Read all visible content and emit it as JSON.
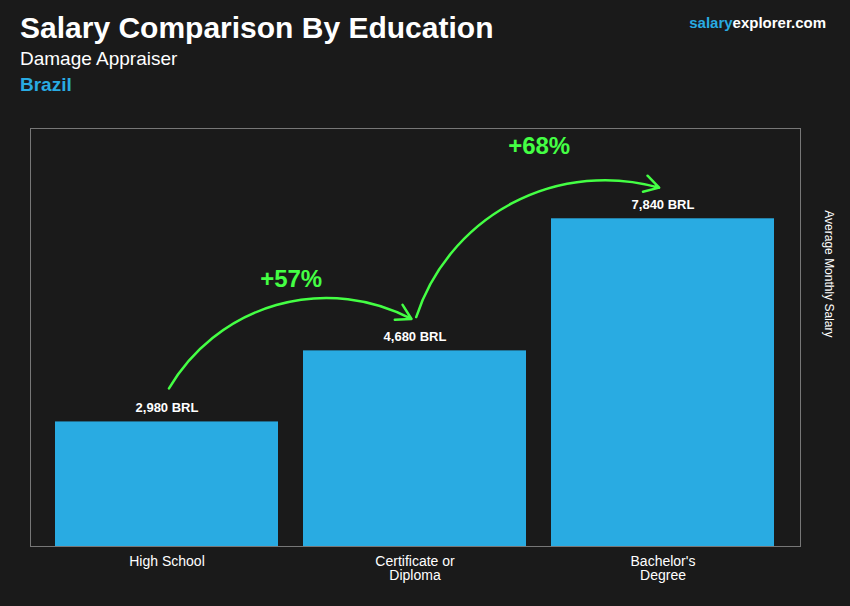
{
  "chart_data": {
    "type": "bar",
    "title": "Salary Comparison By Education",
    "subtitle": "Damage Appraiser",
    "country": {
      "text": "Brazil",
      "color": "#29abe2"
    },
    "website": [
      {
        "text": "salary",
        "color": "#29abe2"
      },
      {
        "text": "explorer.com",
        "color": "#ffffff"
      }
    ],
    "ylabel": "Average Monthly Salary",
    "categories": [
      "High School",
      "Certificate or\nDiploma",
      "Bachelor's\nDegree"
    ],
    "values": [
      2980,
      4680,
      7840
    ],
    "value_labels": [
      "2,980 BRL",
      "4,680 BRL",
      "7,840 BRL"
    ],
    "data_labels": true,
    "color": "#29abe2",
    "ylim": [
      0,
      10000
    ],
    "yticks": [],
    "tick_labels": "x",
    "grid": false,
    "annotations": [
      {
        "text": "+57%",
        "from": "High School",
        "to": "Certificate or\nDiploma",
        "color": "#44ff44"
      },
      {
        "text": "+68%",
        "from": "Certificate or\nDiploma",
        "to": "Bachelor's\nDegree",
        "color": "#44ff44"
      }
    ]
  }
}
